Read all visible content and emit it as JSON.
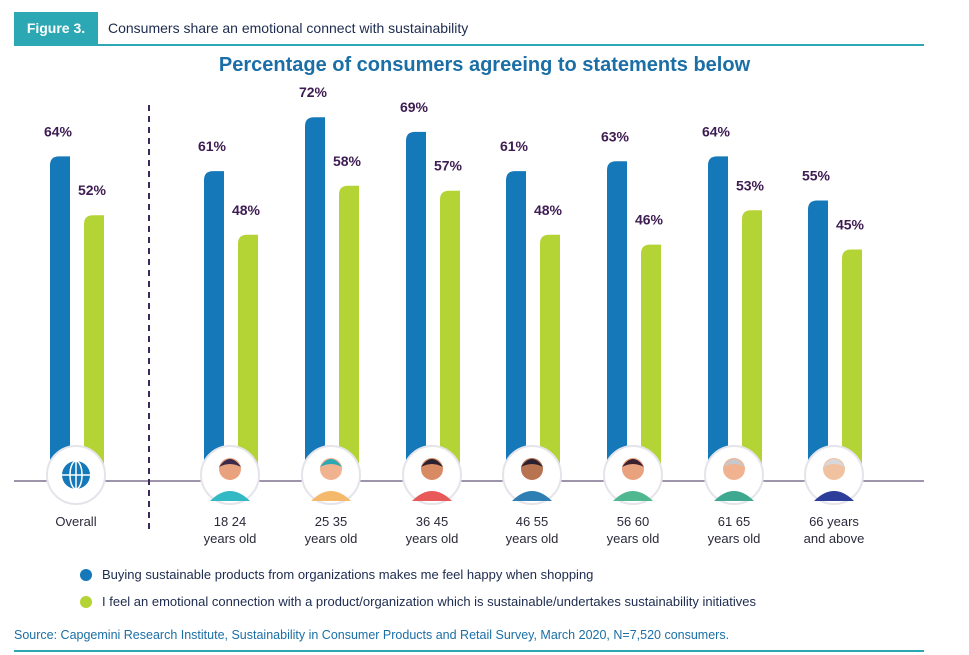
{
  "figure": {
    "label": "Figure 3.",
    "caption": "Consumers share an emotional connect with sustainability",
    "source": "Source: Capgemini Research Institute, Sustainability in Consumer Products and Retail Survey, March 2020, N=7,520 consumers."
  },
  "colors": {
    "series1": "#1578b8",
    "series2": "#b4d334",
    "accent": "#2ba8b3",
    "value_text": "#3d1c52"
  },
  "chart_data": {
    "type": "bar",
    "title": "Percentage of consumers agreeing to statements below",
    "categories": [
      {
        "line1": "Overall",
        "line2": "",
        "icon": "globe-icon"
      },
      {
        "line1": "18 24",
        "line2": "years old",
        "icon": "young-man-avatar-icon"
      },
      {
        "line1": "25 35",
        "line2": "years old",
        "icon": "woman-teal-hair-avatar-icon"
      },
      {
        "line1": "36 45",
        "line2": "years old",
        "icon": "man-mustache-avatar-icon"
      },
      {
        "line1": "46 55",
        "line2": "years old",
        "icon": "bearded-man-avatar-icon"
      },
      {
        "line1": "56 60",
        "line2": "years old",
        "icon": "woman-glasses-avatar-icon"
      },
      {
        "line1": "61 65",
        "line2": "years old",
        "icon": "gray-haired-man-avatar-icon"
      },
      {
        "line1": "66 years",
        "line2": "and above",
        "icon": "elderly-man-avatar-icon"
      }
    ],
    "series": [
      {
        "name": "Buying sustainable products from organizations makes me feel happy when shopping",
        "values": [
          64,
          61,
          72,
          69,
          61,
          63,
          64,
          55
        ]
      },
      {
        "name": "I feel an emotional connection with a product/organization which is sustainable/undertakes sustainability initiatives",
        "values": [
          52,
          48,
          58,
          57,
          48,
          46,
          53,
          45
        ]
      }
    ],
    "value_suffix": "%",
    "legend_position": "bottom",
    "grid": false
  }
}
